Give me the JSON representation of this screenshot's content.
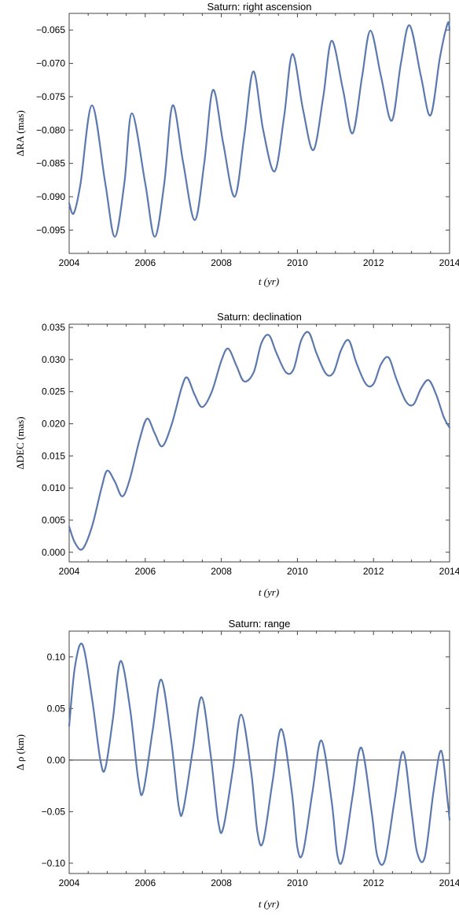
{
  "chart_data": [
    {
      "type": "line",
      "title": "Saturn: right ascension",
      "ylabel": "ΔRA (mas)",
      "xlabel": "t (yr)",
      "xlim": [
        2004,
        2014
      ],
      "ylim": [
        -0.0985,
        -0.0625
      ],
      "xticks": [
        2004,
        2006,
        2008,
        2010,
        2012,
        2014
      ],
      "yticks": [
        -0.095,
        -0.09,
        -0.085,
        -0.08,
        -0.075,
        -0.07,
        -0.065
      ],
      "ytick_labels": [
        "−0.095",
        "−0.090",
        "−0.085",
        "−0.080",
        "−0.075",
        "−0.070",
        "−0.065"
      ],
      "zero_line": false,
      "series": [
        {
          "color": "#5b79ad",
          "x": [
            2004.0,
            2004.12,
            2004.3,
            2004.6,
            2004.95,
            2005.2,
            2005.45,
            2005.65,
            2006.0,
            2006.25,
            2006.5,
            2006.72,
            2007.0,
            2007.3,
            2007.55,
            2007.78,
            2008.05,
            2008.35,
            2008.6,
            2008.84,
            2009.1,
            2009.4,
            2009.65,
            2009.87,
            2010.15,
            2010.42,
            2010.68,
            2010.9,
            2011.2,
            2011.45,
            2011.7,
            2011.92,
            2012.2,
            2012.48,
            2012.72,
            2012.95,
            2013.25,
            2013.5,
            2013.75,
            2013.95,
            2014.0
          ],
          "y": [
            -0.091,
            -0.0925,
            -0.088,
            -0.0763,
            -0.088,
            -0.096,
            -0.088,
            -0.0775,
            -0.088,
            -0.096,
            -0.088,
            -0.0763,
            -0.085,
            -0.0935,
            -0.085,
            -0.074,
            -0.082,
            -0.09,
            -0.081,
            -0.0712,
            -0.08,
            -0.0862,
            -0.078,
            -0.0686,
            -0.077,
            -0.083,
            -0.075,
            -0.0666,
            -0.074,
            -0.0805,
            -0.072,
            -0.0651,
            -0.072,
            -0.0786,
            -0.07,
            -0.0643,
            -0.072,
            -0.0778,
            -0.069,
            -0.064,
            -0.065
          ]
        }
      ]
    },
    {
      "type": "line",
      "title": "Saturn: declination",
      "ylabel": "ΔDEC (mas)",
      "xlabel": "t (yr)",
      "xlim": [
        2004,
        2014
      ],
      "ylim": [
        -0.0015,
        0.0355
      ],
      "xticks": [
        2004,
        2006,
        2008,
        2010,
        2012,
        2014
      ],
      "yticks": [
        0.0,
        0.005,
        0.01,
        0.015,
        0.02,
        0.025,
        0.03,
        0.035
      ],
      "ytick_labels": [
        "0.000",
        "0.005",
        "0.010",
        "0.015",
        "0.020",
        "0.025",
        "0.030",
        "0.035"
      ],
      "zero_line": false,
      "series": [
        {
          "color": "#5b79ad",
          "x": [
            2004.0,
            2004.15,
            2004.35,
            2004.6,
            2004.85,
            2005.0,
            2005.2,
            2005.4,
            2005.6,
            2005.85,
            2006.05,
            2006.25,
            2006.45,
            2006.7,
            2006.95,
            2007.1,
            2007.3,
            2007.5,
            2007.75,
            2008.0,
            2008.18,
            2008.4,
            2008.6,
            2008.85,
            2009.05,
            2009.25,
            2009.45,
            2009.7,
            2009.9,
            2010.1,
            2010.3,
            2010.5,
            2010.75,
            2010.95,
            2011.15,
            2011.35,
            2011.55,
            2011.8,
            2012.0,
            2012.2,
            2012.4,
            2012.6,
            2012.85,
            2013.05,
            2013.25,
            2013.45,
            2013.65,
            2013.85,
            2014.0
          ],
          "y": [
            0.004,
            0.0015,
            0.0005,
            0.004,
            0.01,
            0.0127,
            0.011,
            0.0087,
            0.0115,
            0.0175,
            0.0208,
            0.0185,
            0.0165,
            0.02,
            0.0255,
            0.0272,
            0.0245,
            0.0226,
            0.025,
            0.0298,
            0.0317,
            0.029,
            0.0266,
            0.028,
            0.0325,
            0.0338,
            0.031,
            0.028,
            0.0285,
            0.033,
            0.0342,
            0.031,
            0.0278,
            0.028,
            0.0315,
            0.033,
            0.0295,
            0.0262,
            0.0262,
            0.0293,
            0.0303,
            0.027,
            0.0235,
            0.023,
            0.0255,
            0.0268,
            0.0245,
            0.021,
            0.0194
          ]
        }
      ]
    },
    {
      "type": "line",
      "title": "Saturn: range",
      "ylabel": "Δ ρ (km)",
      "xlabel": "t (yr)",
      "xlim": [
        2004,
        2014
      ],
      "ylim": [
        -0.11,
        0.125
      ],
      "xticks": [
        2004,
        2006,
        2008,
        2010,
        2012,
        2014
      ],
      "yticks": [
        -0.1,
        -0.05,
        0.0,
        0.05,
        0.1
      ],
      "ytick_labels": [
        "−0.10",
        "−0.05",
        "0.00",
        "0.05",
        "0.10"
      ],
      "zero_line": true,
      "series": [
        {
          "color": "#5b79ad",
          "x": [
            2004.0,
            2004.15,
            2004.35,
            2004.6,
            2004.82,
            2004.95,
            2005.15,
            2005.35,
            2005.6,
            2005.82,
            2005.95,
            2006.2,
            2006.42,
            2006.68,
            2006.88,
            2007.0,
            2007.25,
            2007.48,
            2007.72,
            2007.92,
            2008.05,
            2008.3,
            2008.52,
            2008.78,
            2008.95,
            2009.1,
            2009.35,
            2009.58,
            2009.85,
            2010.0,
            2010.15,
            2010.4,
            2010.63,
            2010.9,
            2011.05,
            2011.2,
            2011.45,
            2011.68,
            2011.95,
            2012.1,
            2012.3,
            2012.55,
            2012.78,
            2013.0,
            2013.15,
            2013.35,
            2013.58,
            2013.78,
            2013.95,
            2014.0
          ],
          "y": [
            0.033,
            0.09,
            0.112,
            0.06,
            0.0,
            -0.008,
            0.04,
            0.096,
            0.05,
            -0.02,
            -0.03,
            0.03,
            0.078,
            0.02,
            -0.045,
            -0.048,
            0.01,
            0.061,
            0.005,
            -0.06,
            -0.066,
            -0.01,
            0.044,
            -0.01,
            -0.07,
            -0.079,
            -0.02,
            0.03,
            -0.03,
            -0.085,
            -0.089,
            -0.03,
            0.019,
            -0.04,
            -0.092,
            -0.095,
            -0.035,
            0.012,
            -0.05,
            -0.093,
            -0.097,
            -0.04,
            0.008,
            -0.05,
            -0.09,
            -0.094,
            -0.03,
            0.009,
            -0.04,
            -0.058
          ]
        }
      ]
    }
  ]
}
